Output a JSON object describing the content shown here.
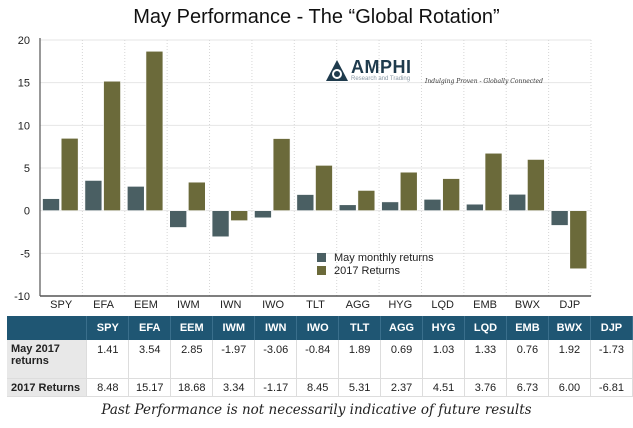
{
  "colors": {
    "may": "#4a5f63",
    "ytd": "#6b6a3a",
    "table_header": "#1f5673"
  },
  "logo": {
    "brand": "AMPHI",
    "sub": "Research and Trading",
    "tagline": "Indulging Proven - Globally Connected"
  },
  "chart_data": {
    "type": "bar",
    "title": "May Performance - The “Global Rotation”",
    "categories": [
      "SPY",
      "EFA",
      "EEM",
      "IWM",
      "IWN",
      "IWO",
      "TLT",
      "AGG",
      "HYG",
      "LQD",
      "EMB",
      "BWX",
      "DJP"
    ],
    "series": [
      {
        "name": "May monthly returns",
        "values": [
          1.41,
          3.54,
          2.85,
          -1.97,
          -3.06,
          -0.84,
          1.89,
          0.69,
          1.03,
          1.33,
          0.76,
          1.92,
          -1.73
        ]
      },
      {
        "name": "2017 Returns",
        "values": [
          8.48,
          15.17,
          18.68,
          3.34,
          -1.17,
          8.45,
          5.31,
          2.37,
          4.51,
          3.76,
          6.73,
          6.0,
          -6.81
        ]
      }
    ],
    "ylim": [
      -10,
      20
    ],
    "yticks": [
      20,
      15,
      10,
      5,
      0,
      -5,
      -10
    ],
    "xlabel": "",
    "ylabel": "",
    "grid": true,
    "legend": "center-bottom"
  },
  "table": {
    "headers": [
      "",
      "SPY",
      "EFA",
      "EEM",
      "IWM",
      "IWN",
      "IWO",
      "TLT",
      "AGG",
      "HYG",
      "LQD",
      "EMB",
      "BWX",
      "DJP"
    ],
    "rows": [
      {
        "label": "May 2017 returns",
        "values": [
          "1.41",
          "3.54",
          "2.85",
          "-1.97",
          "-3.06",
          "-0.84",
          "1.89",
          "0.69",
          "1.03",
          "1.33",
          "0.76",
          "1.92",
          "-1.73"
        ]
      },
      {
        "label": "2017 Returns",
        "values": [
          "8.48",
          "15.17",
          "18.68",
          "3.34",
          "-1.17",
          "8.45",
          "5.31",
          "2.37",
          "4.51",
          "3.76",
          "6.73",
          "6.00",
          "-6.81"
        ]
      }
    ]
  },
  "footer": "Past Performance is not necessarily indicative of future results"
}
